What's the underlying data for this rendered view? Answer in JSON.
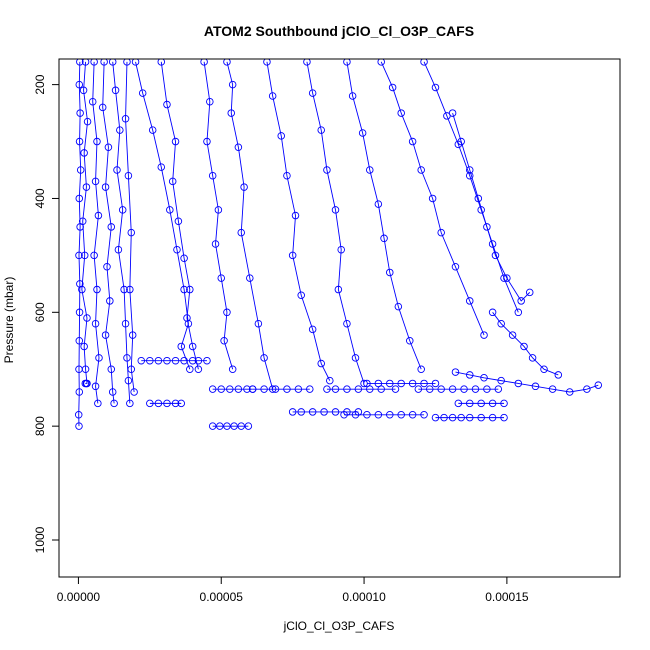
{
  "chart_data": {
    "type": "scatter",
    "title": "ATOM2 Southbound jClO_Cl_O3P_CAFS",
    "xlabel": "jClO_Cl_O3P_CAFS",
    "ylabel": "Pressure (mbar)",
    "xlim": [
      -6.8e-06,
      0.0001896
    ],
    "ylim": [
      1065,
      155
    ],
    "y_reversed": true,
    "x_ticks": [
      0,
      5e-05,
      0.0001,
      0.00015
    ],
    "x_tick_labels": [
      "0.00000",
      "0.00005",
      "0.00010",
      "0.00015"
    ],
    "y_ticks": [
      200,
      400,
      600,
      800,
      1000
    ],
    "y_tick_labels": [
      "200",
      "400",
      "600",
      "800",
      "1000"
    ],
    "grid": false,
    "color": "#0000ff",
    "markers": "open-circle",
    "connected": true,
    "series": [
      {
        "x": [
          5e-07,
          3e-07,
          6e-07,
          4e-07,
          8e-07,
          3e-07,
          6e-07,
          2e-07,
          5e-07,
          4e-07,
          3e-07,
          2e-07,
          3e-07,
          1e-07,
          2e-07
        ],
        "y": [
          160,
          200,
          250,
          300,
          350,
          400,
          450,
          500,
          550,
          600,
          650,
          700,
          740,
          780,
          800
        ]
      },
      {
        "x": [
          2.5e-06,
          1.8e-06,
          3.2e-06,
          2e-06,
          2.8e-06,
          1.5e-06,
          2.2e-06,
          1.2e-06,
          3e-06,
          2e-06,
          2.5e-06,
          3e-06,
          2.4e-06,
          2.8e-06
        ],
        "y": [
          160,
          210,
          265,
          320,
          380,
          440,
          500,
          560,
          610,
          660,
          700,
          725,
          725,
          725
        ]
      },
      {
        "x": [
          5.5e-06,
          5e-06,
          6.5e-06,
          6e-06,
          7e-06,
          5.5e-06,
          6.5e-06,
          6e-06,
          7.2e-06,
          6e-06,
          6.8e-06
        ],
        "y": [
          160,
          230,
          300,
          370,
          430,
          500,
          560,
          620,
          680,
          730,
          760
        ]
      },
      {
        "x": [
          9e-06,
          8.5e-06,
          1.05e-05,
          9.5e-06,
          1.15e-05,
          1e-05,
          1.1e-05,
          9.5e-06,
          1.15e-05,
          1.2e-05,
          1.25e-05
        ],
        "y": [
          160,
          240,
          310,
          380,
          450,
          520,
          580,
          640,
          700,
          740,
          760
        ]
      },
      {
        "x": [
          1.2e-05,
          1.3e-05,
          1.45e-05,
          1.35e-05,
          1.55e-05,
          1.4e-05,
          1.6e-05,
          1.65e-05,
          1.7e-05,
          1.75e-05,
          1.8e-05
        ],
        "y": [
          160,
          210,
          280,
          350,
          420,
          490,
          560,
          620,
          680,
          720,
          760
        ]
      },
      {
        "x": [
          1.7e-05,
          1.65e-05,
          1.75e-05,
          1.85e-05,
          1.8e-05,
          1.9e-05,
          1.85e-05,
          1.95e-05
        ],
        "y": [
          160,
          260,
          360,
          460,
          560,
          640,
          700,
          740
        ]
      },
      {
        "x": [
          2.2e-05,
          2.5e-05,
          2.8e-05,
          3.1e-05,
          3.4e-05,
          3.7e-05,
          4e-05,
          4.2e-05,
          4.5e-05
        ],
        "y": [
          685,
          685,
          685,
          685,
          685,
          685,
          685,
          685,
          685
        ]
      },
      {
        "x": [
          2.5e-05,
          2.8e-05,
          3.1e-05,
          3.4e-05,
          3.6e-05
        ],
        "y": [
          760,
          760,
          760,
          760,
          760
        ]
      },
      {
        "x": [
          2e-05,
          2.25e-05,
          2.6e-05,
          2.9e-05,
          3.2e-05,
          3.45e-05,
          3.7e-05,
          3.85e-05,
          3.6e-05,
          3.9e-05
        ],
        "y": [
          160,
          215,
          280,
          345,
          420,
          490,
          560,
          620,
          660,
          700
        ]
      },
      {
        "x": [
          2.9e-05,
          3.1e-05,
          3.4e-05,
          3.3e-05,
          3.5e-05,
          3.7e-05,
          3.9e-05,
          3.8e-05,
          4e-05,
          4.2e-05
        ],
        "y": [
          160,
          235,
          300,
          370,
          440,
          505,
          560,
          610,
          660,
          700
        ]
      },
      {
        "x": [
          4.4e-05,
          4.6e-05,
          4.5e-05,
          4.7e-05,
          4.9e-05,
          4.8e-05,
          5e-05,
          5.2e-05,
          5.1e-05,
          5.4e-05
        ],
        "y": [
          160,
          230,
          300,
          360,
          420,
          480,
          540,
          600,
          650,
          700
        ]
      },
      {
        "x": [
          4.7e-05,
          5e-05,
          5.3e-05,
          5.6e-05,
          5.9e-05,
          6.1e-05
        ],
        "y": [
          735,
          735,
          735,
          735,
          735,
          735
        ]
      },
      {
        "x": [
          4.7e-05,
          4.95e-05,
          5.2e-05,
          5.45e-05,
          5.7e-05,
          5.95e-05
        ],
        "y": [
          800,
          800,
          800,
          800,
          800,
          800
        ]
      },
      {
        "x": [
          5.2e-05,
          5.4e-05,
          5.35e-05,
          5.6e-05,
          5.8e-05,
          5.7e-05,
          6e-05,
          6.3e-05,
          6.5e-05,
          6.8e-05
        ],
        "y": [
          160,
          200,
          250,
          310,
          380,
          460,
          540,
          620,
          680,
          735
        ]
      },
      {
        "x": [
          6.1e-05,
          6.5e-05,
          6.9e-05,
          7.3e-05,
          7.7e-05,
          8.1e-05
        ],
        "y": [
          735,
          735,
          735,
          735,
          735,
          735
        ]
      },
      {
        "x": [
          6.6e-05,
          6.8e-05,
          7.1e-05,
          7.3e-05,
          7.6e-05,
          7.5e-05,
          7.8e-05,
          8.2e-05,
          8.5e-05,
          8.8e-05
        ],
        "y": [
          160,
          220,
          290,
          360,
          430,
          500,
          570,
          630,
          690,
          720
        ]
      },
      {
        "x": [
          7.5e-05,
          7.8e-05,
          8.2e-05,
          8.6e-05,
          9e-05,
          9.4e-05,
          9.8e-05
        ],
        "y": [
          775,
          775,
          775,
          775,
          775,
          775,
          775
        ]
      },
      {
        "x": [
          8e-05,
          8.2e-05,
          8.5e-05,
          8.7e-05,
          9e-05,
          9.2e-05,
          9.1e-05,
          9.4e-05,
          9.7e-05,
          0.0001
        ],
        "y": [
          160,
          215,
          280,
          350,
          420,
          490,
          560,
          620,
          680,
          725
        ]
      },
      {
        "x": [
          8.7e-05,
          9e-05,
          9.4e-05,
          9.8e-05,
          0.000102,
          0.000106,
          0.000111
        ],
        "y": [
          735,
          735,
          735,
          735,
          735,
          735,
          735
        ]
      },
      {
        "x": [
          9.3e-05,
          9.7e-05,
          0.000101,
          0.000105,
          0.000109,
          0.000113,
          0.000117,
          0.000121
        ],
        "y": [
          780,
          780,
          780,
          780,
          780,
          780,
          780,
          780
        ]
      },
      {
        "x": [
          9.4e-05,
          9.6e-05,
          9.95e-05,
          0.000102,
          0.000105,
          0.000107,
          0.000109,
          0.000112,
          0.000116,
          0.00012
        ],
        "y": [
          160,
          220,
          285,
          350,
          410,
          470,
          530,
          590,
          650,
          700
        ]
      },
      {
        "x": [
          0.000101,
          0.000105,
          0.000109,
          0.000113,
          0.000117,
          0.000121,
          0.000125
        ],
        "y": [
          725,
          725,
          725,
          725,
          725,
          725,
          725
        ]
      },
      {
        "x": [
          0.000106,
          0.00011,
          0.000113,
          0.000117,
          0.00012,
          0.000124,
          0.000127,
          0.000132,
          0.000137,
          0.000142
        ],
        "y": [
          160,
          205,
          250,
          300,
          350,
          400,
          460,
          520,
          580,
          640
        ]
      },
      {
        "x": [
          0.000119,
          0.000123,
          0.000127,
          0.000131,
          0.000135,
          0.000139,
          0.000143,
          0.000147
        ],
        "y": [
          735,
          735,
          735,
          735,
          735,
          735,
          735,
          735
        ]
      },
      {
        "x": [
          0.000121,
          0.000125,
          0.000129,
          0.000133,
          0.000137,
          0.000141,
          0.000145,
          0.000149,
          0.000154
        ],
        "y": [
          160,
          205,
          255,
          305,
          360,
          420,
          480,
          540,
          600
        ]
      },
      {
        "x": [
          0.000125,
          0.000128,
          0.000131,
          0.000134,
          0.000137,
          0.000141,
          0.000145,
          0.000149
        ],
        "y": [
          785,
          785,
          785,
          785,
          785,
          785,
          785,
          785
        ]
      },
      {
        "x": [
          0.000131,
          0.000134,
          0.000137,
          0.00014,
          0.000143,
          0.000146,
          0.00015,
          0.000155,
          0.000158
        ],
        "y": [
          250,
          300,
          350,
          400,
          450,
          500,
          540,
          580,
          565
        ]
      },
      {
        "x": [
          0.000132,
          0.000137,
          0.000142,
          0.000148,
          0.000154,
          0.00016,
          0.000166,
          0.000172,
          0.000178,
          0.000182
        ],
        "y": [
          705,
          710,
          715,
          720,
          725,
          730,
          735,
          740,
          735,
          728
        ]
      },
      {
        "x": [
          0.000133,
          0.000137,
          0.000141,
          0.000145,
          0.000149
        ],
        "y": [
          760,
          760,
          760,
          760,
          760
        ]
      },
      {
        "x": [
          0.000145,
          0.000148,
          0.000152,
          0.000156,
          0.000159,
          0.000163,
          0.000168
        ],
        "y": [
          600,
          620,
          640,
          660,
          680,
          700,
          710
        ]
      }
    ]
  }
}
